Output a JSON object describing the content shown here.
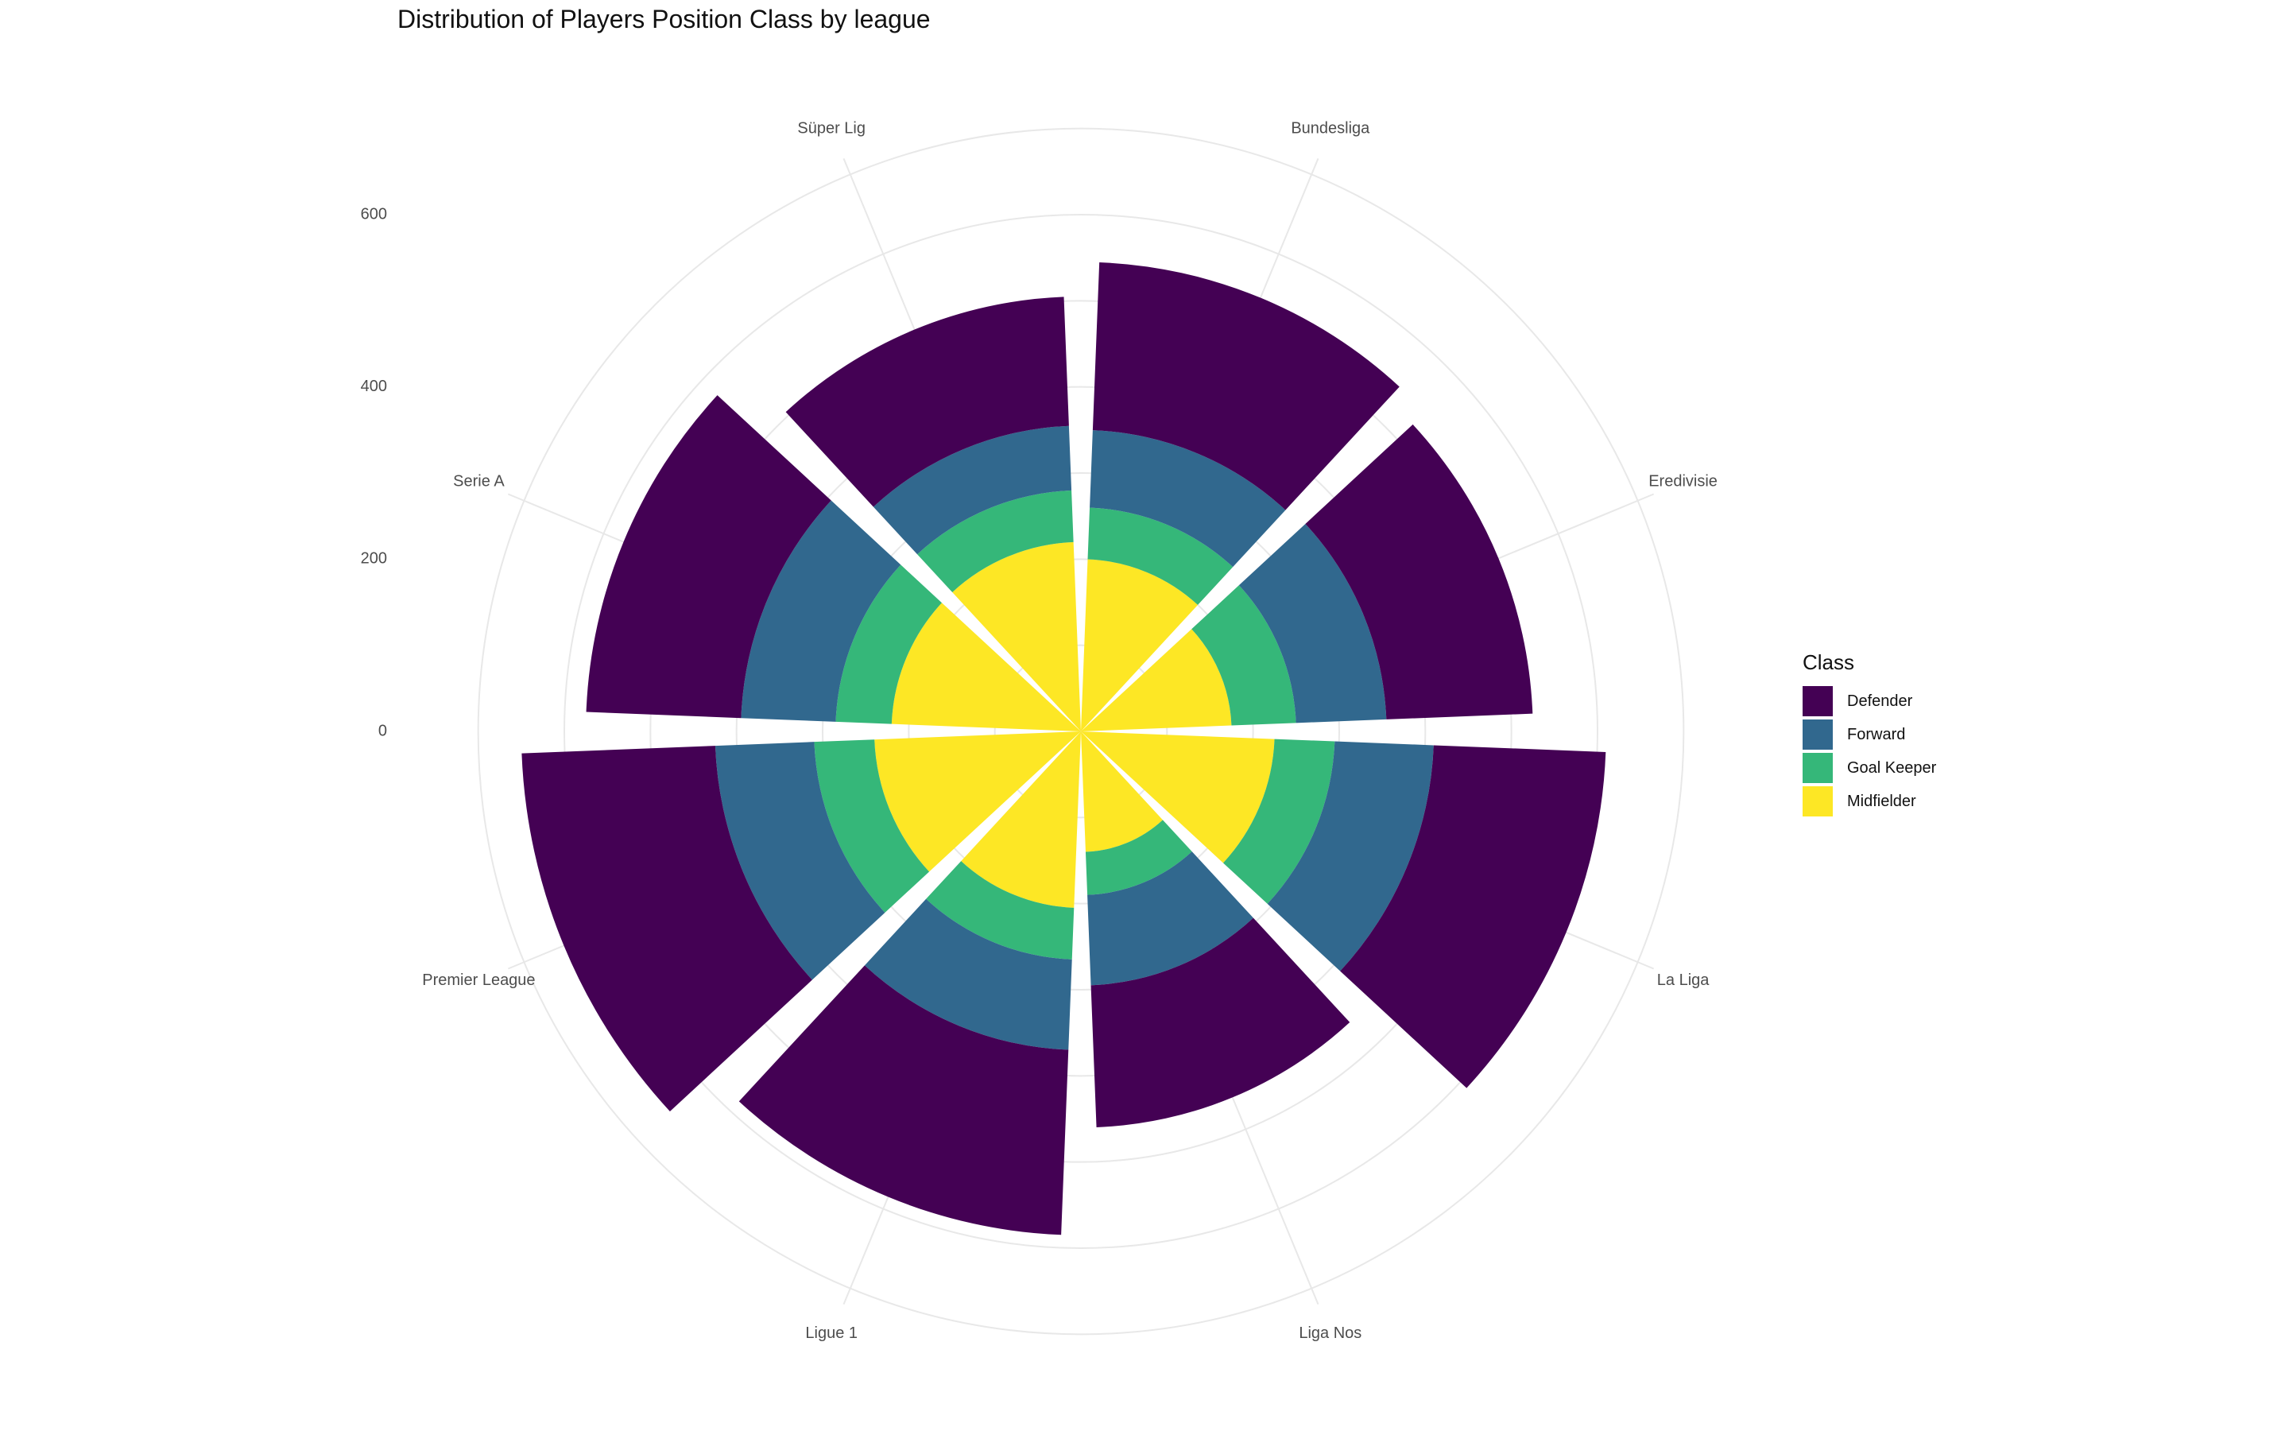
{
  "chart_data": {
    "type": "bar",
    "coord": "polar",
    "stacked": true,
    "title": "Distribution of Players Position Class by league",
    "categories": [
      "Bundesliga",
      "Eredivisie",
      "La Liga",
      "Liga Nos",
      "Ligue 1",
      "Premier League",
      "Serie A",
      "Süper Lig"
    ],
    "series": [
      {
        "name": "Midfielder",
        "color": "#FDE725",
        "values": [
          200,
          175,
          225,
          140,
          205,
          240,
          220,
          220
        ]
      },
      {
        "name": "Goal Keeper",
        "color": "#35B779",
        "values": [
          60,
          75,
          70,
          50,
          60,
          70,
          65,
          60
        ]
      },
      {
        "name": "Forward",
        "color": "#31688E",
        "values": [
          90,
          105,
          115,
          105,
          105,
          115,
          110,
          75
        ]
      },
      {
        "name": "Defender",
        "color": "#440154",
        "values": [
          195,
          170,
          200,
          165,
          215,
          225,
          180,
          150
        ]
      }
    ],
    "y_ticks": [
      0,
      200,
      400,
      600
    ],
    "ylim": [
      0,
      720
    ],
    "legend": {
      "title": "Class",
      "position": "right",
      "entries": [
        "Defender",
        "Forward",
        "Goal Keeper",
        "Midfielder"
      ]
    },
    "grid": true
  }
}
